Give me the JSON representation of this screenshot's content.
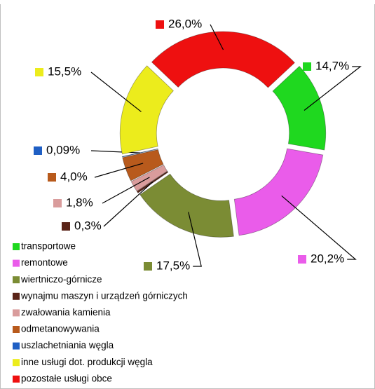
{
  "chart_data": {
    "type": "donut",
    "categories": [
      "transportowe",
      "remontowe",
      "wiertniczo-górnicze",
      "wynajmu maszyn i urządzeń górniczych",
      "zwałowania kamienia",
      "odmetanowywania",
      "uszlachetniania węgla",
      "inne usługi dot. produkcji węgla",
      "pozostałe usługi obce"
    ],
    "values": [
      14.7,
      20.2,
      17.5,
      0.3,
      1.8,
      4.0,
      0.09,
      15.5,
      26.0
    ],
    "value_labels": [
      "14,7%",
      "20,2%",
      "17,5%",
      "0,3%",
      "1,8%",
      "4,0%",
      "0,09%",
      "15,5%",
      "26,0%"
    ],
    "colors": [
      "#1fd81f",
      "#ea5cea",
      "#7b8c34",
      "#5a2418",
      "#d99c9c",
      "#b85a1c",
      "#1f5fc4",
      "#ecec1c",
      "#ee1010"
    ],
    "legend": "bottom-left"
  }
}
